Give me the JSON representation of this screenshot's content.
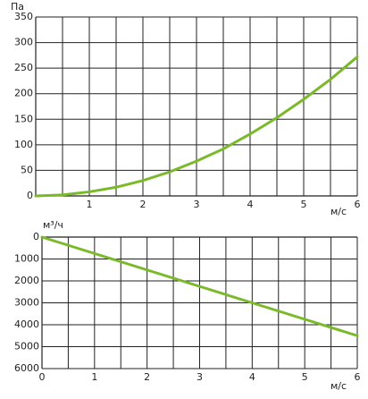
{
  "chart_data": [
    {
      "type": "line",
      "y_label": "Па",
      "x_label": "м/с",
      "x": [
        0,
        0.5,
        1,
        1.5,
        2,
        2.5,
        3,
        3.5,
        4,
        4.5,
        5,
        5.5,
        6
      ],
      "series": [
        {
          "color": "#7ab929",
          "values": [
            0,
            2,
            8,
            17,
            30,
            47,
            68,
            92,
            121,
            153,
            189,
            228,
            272
          ]
        }
      ],
      "xlim": [
        0,
        6
      ],
      "xticks": [
        1,
        2,
        3,
        4,
        5,
        6
      ],
      "x_minor_ticks": [
        0.5,
        1.5,
        2.5,
        3.5,
        4.5,
        5.5
      ],
      "ylim": [
        0,
        350
      ],
      "yticks": [
        0,
        50,
        100,
        150,
        200,
        250,
        300,
        350
      ],
      "y_inverted": false,
      "grid": true
    },
    {
      "type": "line",
      "y_label": "м³/ч",
      "x_label": "м/с",
      "x": [
        0,
        1,
        2,
        3,
        4,
        5,
        6
      ],
      "series": [
        {
          "color": "#7ab929",
          "values": [
            0,
            750,
            1500,
            2250,
            3000,
            3750,
            4500
          ]
        }
      ],
      "xlim": [
        0,
        6
      ],
      "xticks": [
        0,
        1,
        2,
        3,
        4,
        5,
        6
      ],
      "x_minor_ticks": [
        0.5,
        1.5,
        2.5,
        3.5,
        4.5,
        5.5
      ],
      "ylim": [
        0,
        6000
      ],
      "yticks": [
        0,
        1000,
        2000,
        3000,
        4000,
        5000,
        6000
      ],
      "y_inverted": true,
      "grid": true
    }
  ]
}
